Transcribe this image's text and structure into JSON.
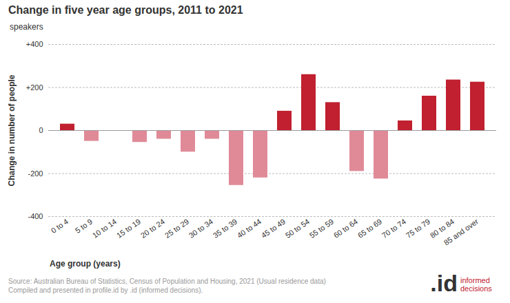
{
  "chart_data": {
    "type": "bar",
    "title": "Change in five year age groups, 2011 to 2021",
    "subtitle": "speakers",
    "x_label": "Age group (years)",
    "y_label": "Change in number of people",
    "categories": [
      "0 to 4",
      "5 to 9",
      "10 to 14",
      "15 to 19",
      "20 to 24",
      "25 to 29",
      "30 to 34",
      "35 to 39",
      "40 to 44",
      "45 to 49",
      "50 to 54",
      "55 to 59",
      "60 to 64",
      "65 to 69",
      "70 to 74",
      "75 to 79",
      "80 to 84",
      "85 and over"
    ],
    "values": [
      30,
      -50,
      -3,
      -55,
      -40,
      -100,
      -40,
      -255,
      -220,
      90,
      260,
      130,
      -190,
      -225,
      45,
      160,
      235,
      225
    ],
    "colors": [
      "#c0202f",
      "#e08a98",
      "#e08a98",
      "#e08a98",
      "#e08a98",
      "#e08a98",
      "#e08a98",
      "#e08a98",
      "#e08a98",
      "#c0202f",
      "#c0202f",
      "#c0202f",
      "#e08a98",
      "#e08a98",
      "#c0202f",
      "#c0202f",
      "#c0202f",
      "#c0202f"
    ],
    "ylim": [
      -400,
      400
    ],
    "yticks": [
      -400,
      -200,
      0,
      {
        "value": 200,
        "label": "+200"
      },
      {
        "value": 400,
        "label": "+400"
      }
    ],
    "grid": true,
    "source": [
      "Source: Australian Bureau of Statistics, Census of Population and Housing, 2021 (Usual residence data)",
      "Compiled and presented in profile.id by .id (informed decisions)."
    ],
    "logo": ".id",
    "logo_text": "informed decisions"
  }
}
